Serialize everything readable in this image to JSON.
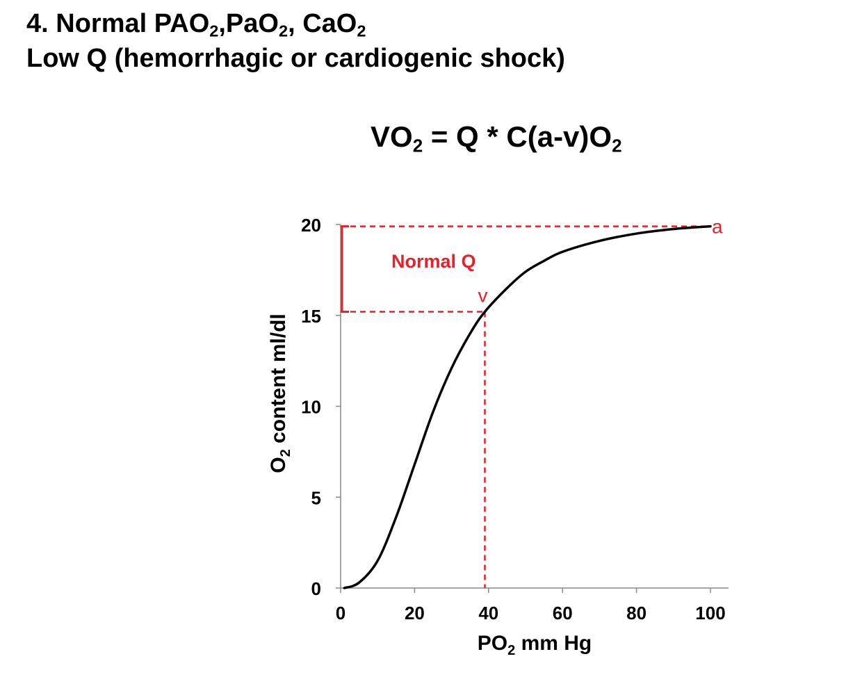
{
  "slide": {
    "title_line1": {
      "prefix": "4. Normal PAO",
      "sub1": "2",
      "mid1": ",PaO",
      "sub2": "2",
      "mid2": ", CaO",
      "sub3": "2"
    },
    "title_line2": "Low Q (hemorrhagic or cardiogenic shock)",
    "formula": {
      "part1": "VO",
      "sub1": "2",
      "part2": " = Q * C(a-v)O",
      "sub2": "2"
    }
  },
  "colors": {
    "curve": "#000000",
    "annotation": "#e8202a",
    "axis": "#000000"
  },
  "chart_data": {
    "type": "line",
    "xlabel": {
      "main": "PO",
      "sub": "2",
      "rest": " mm Hg"
    },
    "ylabel": {
      "main": "O",
      "sub": "2",
      "rest": " content ml/dl"
    },
    "xlim": [
      0,
      105
    ],
    "ylim": [
      0,
      20
    ],
    "x_ticks": [
      0,
      20,
      40,
      60,
      80,
      100
    ],
    "y_ticks": [
      0,
      5,
      10,
      15,
      20
    ],
    "grid": false,
    "series": [
      {
        "x": [
          1,
          5,
          10,
          15,
          20,
          25,
          30,
          35,
          39,
          45,
          50,
          55,
          60,
          70,
          80,
          90,
          100
        ],
        "y": [
          0,
          0.3,
          1.5,
          3.9,
          6.8,
          9.7,
          12.1,
          14.0,
          15.2,
          16.5,
          17.4,
          18.0,
          18.5,
          19.1,
          19.5,
          19.75,
          19.9
        ]
      }
    ],
    "annotations": {
      "arterial": {
        "label": "a",
        "x": 100,
        "y": 19.9
      },
      "venous": {
        "label": "v",
        "x": 39,
        "y": 15.2
      },
      "difference_label": "Normal Q"
    }
  }
}
